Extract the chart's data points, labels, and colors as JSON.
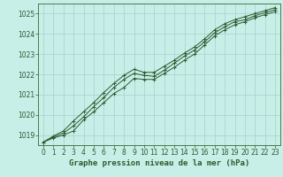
{
  "xlabel": "Graphe pression niveau de la mer (hPa)",
  "bg_color": "#c8eee8",
  "grid_color": "#a0d4cc",
  "line_color": "#2d5a2d",
  "x": [
    0,
    1,
    2,
    3,
    4,
    5,
    6,
    7,
    8,
    9,
    10,
    11,
    12,
    13,
    14,
    15,
    16,
    17,
    18,
    19,
    20,
    21,
    22,
    23
  ],
  "series1": [
    1018.65,
    1018.85,
    1019.0,
    1019.2,
    1019.75,
    1020.15,
    1020.6,
    1021.05,
    1021.35,
    1021.8,
    1021.75,
    1021.75,
    1022.05,
    1022.35,
    1022.7,
    1023.0,
    1023.45,
    1023.9,
    1024.2,
    1024.45,
    1024.6,
    1024.8,
    1024.95,
    1025.1
  ],
  "series2": [
    1018.65,
    1018.9,
    1019.1,
    1019.45,
    1019.9,
    1020.4,
    1020.85,
    1021.35,
    1021.75,
    1022.05,
    1021.95,
    1021.9,
    1022.2,
    1022.55,
    1022.9,
    1023.2,
    1023.6,
    1024.05,
    1024.35,
    1024.6,
    1024.7,
    1024.9,
    1025.05,
    1025.2
  ],
  "series3": [
    1018.65,
    1018.95,
    1019.2,
    1019.7,
    1020.15,
    1020.6,
    1021.1,
    1021.55,
    1021.95,
    1022.25,
    1022.1,
    1022.1,
    1022.4,
    1022.7,
    1023.05,
    1023.35,
    1023.75,
    1024.2,
    1024.5,
    1024.7,
    1024.85,
    1025.0,
    1025.15,
    1025.3
  ],
  "ylim": [
    1018.5,
    1025.5
  ],
  "yticks": [
    1019,
    1020,
    1021,
    1022,
    1023,
    1024,
    1025
  ],
  "xticks": [
    0,
    1,
    2,
    3,
    4,
    5,
    6,
    7,
    8,
    9,
    10,
    11,
    12,
    13,
    14,
    15,
    16,
    17,
    18,
    19,
    20,
    21,
    22,
    23
  ],
  "axis_color": "#4a7a4a",
  "text_color": "#2d5a2d",
  "xlabel_fontsize": 6.5,
  "tick_fontsize": 5.5
}
